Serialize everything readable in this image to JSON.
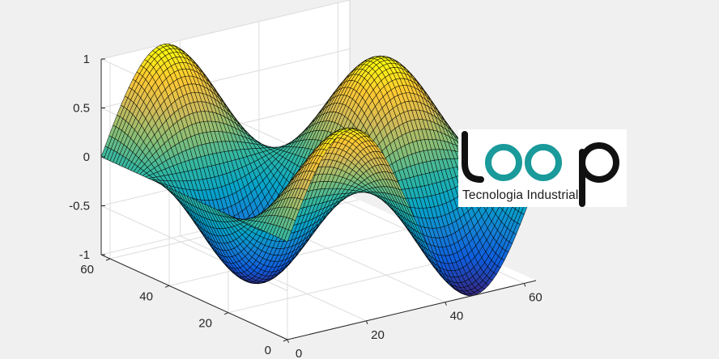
{
  "chart_data": {
    "type": "surface",
    "function": "z = sin(2*pi*x/63) * cos(2*pi*y/63)",
    "grid_size": 64,
    "x_range": [
      0,
      63
    ],
    "y_range": [
      0,
      63
    ],
    "zlim": [
      -1,
      1
    ],
    "x_ticks": [
      "0",
      "20",
      "40",
      "60"
    ],
    "y_ticks": [
      "0",
      "20",
      "40",
      "60"
    ],
    "z_ticks": [
      "-1",
      "-0.5",
      "0",
      "0.5",
      "1"
    ],
    "colormap": "parula",
    "colors": [
      "#352a87",
      "#0f5cdd",
      "#1481d6",
      "#06a4ca",
      "#2eb7a4",
      "#87bf77",
      "#d1bb59",
      "#fec832",
      "#f9fb0e"
    ],
    "grid": true,
    "background": "#f0f0f0",
    "mesh_color": "#000000"
  },
  "logo": {
    "wordmark": "loop",
    "tagline": "Tecnologia Industrial",
    "text_color": "#111111",
    "accent_color": "#1a9a9a",
    "background": "#ffffff"
  }
}
